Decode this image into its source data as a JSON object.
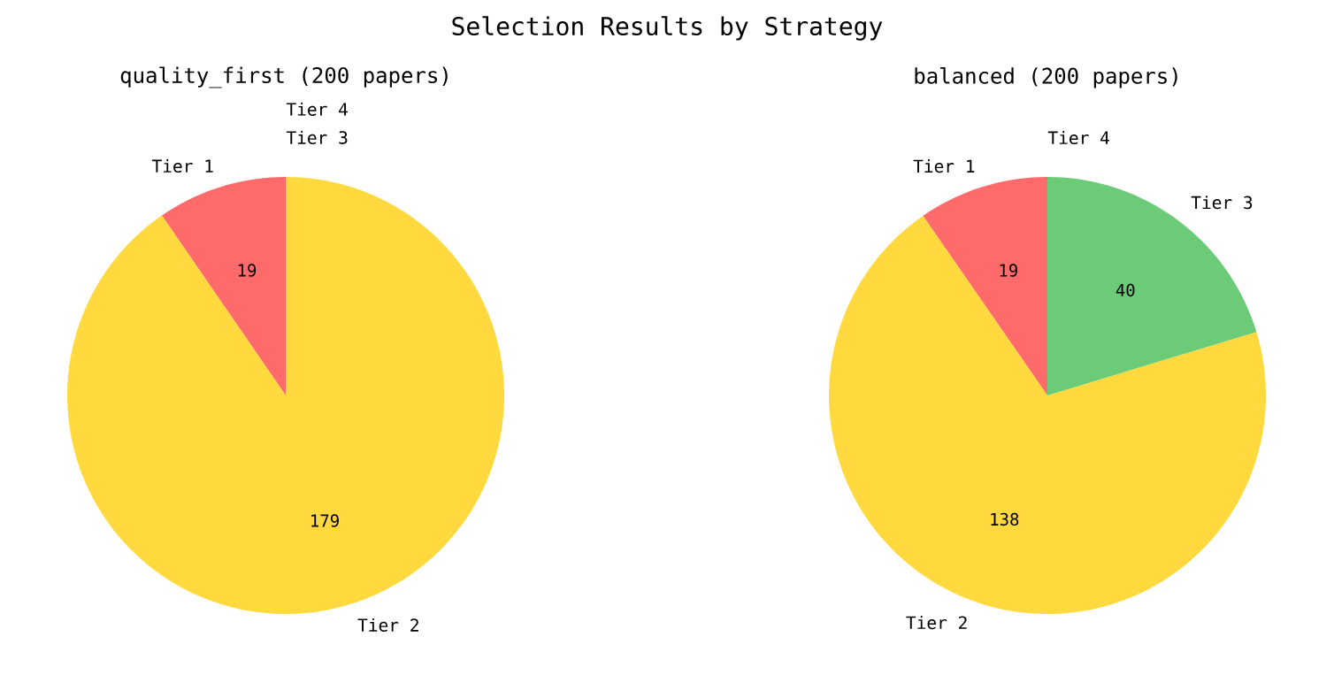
{
  "chart_data": [
    {
      "type": "pie",
      "title": "quality_first (200 papers)",
      "annotations": [
        "Selection Results by Strategy"
      ],
      "categories": [
        "Tier 1",
        "Tier 2",
        "Tier 3",
        "Tier 4"
      ],
      "values": [
        19,
        179,
        0,
        0
      ],
      "colors": [
        "#ff6b6b",
        "#ffd93d",
        "#6bcb77",
        "#4d96ff"
      ],
      "value_labels": [
        "19",
        "179",
        null,
        null
      ]
    },
    {
      "type": "pie",
      "title": "balanced (200 papers)",
      "categories": [
        "Tier 1",
        "Tier 2",
        "Tier 3",
        "Tier 4"
      ],
      "values": [
        19,
        138,
        40,
        0
      ],
      "colors": [
        "#ff6b6b",
        "#ffd93d",
        "#6bcb77",
        "#4d96ff"
      ],
      "value_labels": [
        "19",
        "138",
        "40",
        null
      ]
    }
  ]
}
